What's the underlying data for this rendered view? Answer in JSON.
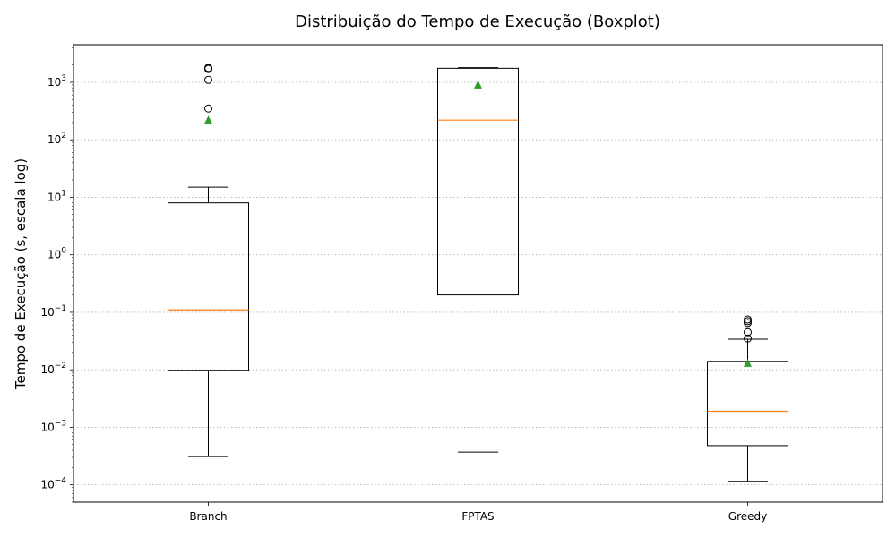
{
  "chart_data": {
    "type": "boxplot",
    "title": "Distribuição do Tempo de Execução (Boxplot)",
    "xlabel": "",
    "ylabel": "Tempo de Execução (s, escala log)",
    "yscale": "log",
    "ylim": [
      5e-05,
      4500
    ],
    "y_ticks": [
      0.0001,
      0.001,
      0.01,
      0.1,
      1,
      10,
      100,
      1000
    ],
    "y_tick_labels": [
      {
        "base": "10",
        "exp": "−4"
      },
      {
        "base": "10",
        "exp": "−3"
      },
      {
        "base": "10",
        "exp": "−2"
      },
      {
        "base": "10",
        "exp": "−1"
      },
      {
        "base": "10",
        "exp": "0"
      },
      {
        "base": "10",
        "exp": "1"
      },
      {
        "base": "10",
        "exp": "2"
      },
      {
        "base": "10",
        "exp": "3"
      }
    ],
    "grid": "y, dotted",
    "categories": [
      "Branch",
      "FPTAS",
      "Greedy"
    ],
    "boxes": [
      {
        "whisker_low": 0.00031,
        "q1": 0.0098,
        "median": 0.11,
        "q3": 8.0,
        "whisker_high": 15,
        "mean": 220,
        "outliers": [
          350,
          1100,
          1700,
          1750,
          1780
        ]
      },
      {
        "whisker_low": 0.00037,
        "q1": 0.2,
        "median": 220,
        "q3": 1750,
        "whisker_high": 1800,
        "mean": 900,
        "outliers": []
      },
      {
        "whisker_low": 0.000115,
        "q1": 0.00048,
        "median": 0.0019,
        "q3": 0.014,
        "whisker_high": 0.034,
        "mean": 0.013,
        "outliers": [
          0.035,
          0.045,
          0.065,
          0.07,
          0.075
        ]
      }
    ],
    "colors": {
      "box": "#000000",
      "median": "#ff7f0e",
      "mean": "#2ca02c",
      "grid": "#b0b0b0"
    }
  }
}
